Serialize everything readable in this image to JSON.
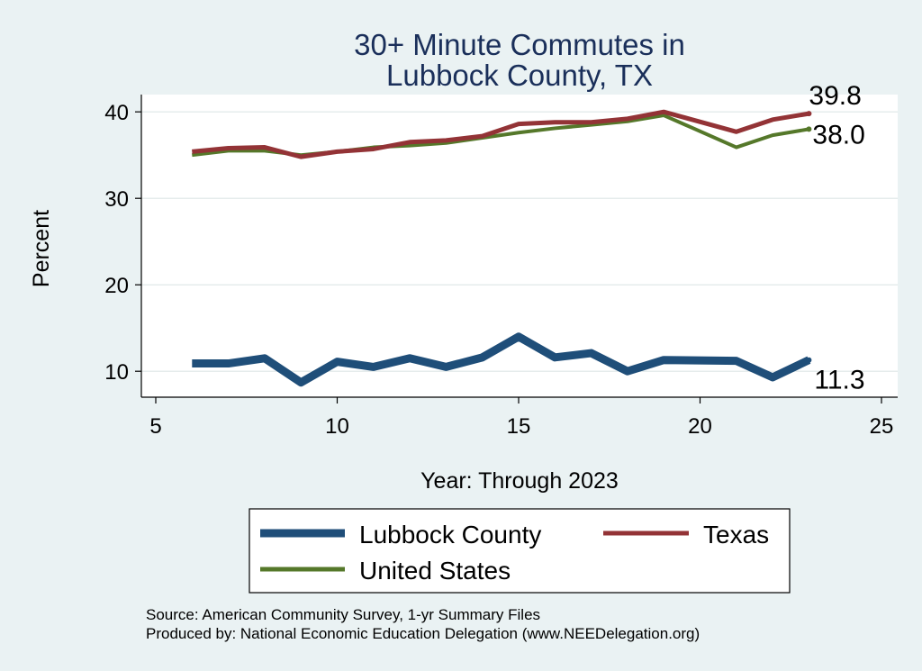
{
  "chart_data": {
    "type": "line",
    "title_lines": [
      "30+ Minute Commutes in",
      "Lubbock County, TX"
    ],
    "xlabel": "Year: Through 2023",
    "ylabel": "Percent",
    "xlim": [
      5,
      25
    ],
    "ylim": [
      7,
      42
    ],
    "xticks": [
      5,
      10,
      15,
      20,
      25
    ],
    "yticks": [
      10,
      20,
      30,
      40
    ],
    "grid": true,
    "legend_position": "bottom",
    "series": [
      {
        "name": "Lubbock County",
        "color": "#1f4e79",
        "x": [
          6,
          7,
          8,
          9,
          10,
          11,
          12,
          13,
          14,
          15,
          16,
          17,
          18,
          19,
          21,
          22,
          23
        ],
        "values": [
          10.9,
          10.9,
          11.5,
          8.7,
          11.1,
          10.5,
          11.5,
          10.5,
          11.6,
          14.0,
          11.6,
          12.1,
          10.0,
          11.3,
          11.2,
          9.3,
          11.3
        ],
        "end_label": "11.3"
      },
      {
        "name": "Texas",
        "color": "#933336",
        "x": [
          6,
          7,
          8,
          9,
          10,
          11,
          12,
          13,
          14,
          15,
          16,
          17,
          18,
          19,
          21,
          22,
          23
        ],
        "values": [
          35.4,
          35.8,
          35.9,
          34.8,
          35.4,
          35.7,
          36.5,
          36.7,
          37.2,
          38.6,
          38.8,
          38.8,
          39.2,
          40.0,
          37.7,
          39.1,
          39.8
        ],
        "end_label": "39.8"
      },
      {
        "name": "United States",
        "color": "#55782a",
        "x": [
          6,
          7,
          8,
          9,
          10,
          11,
          12,
          13,
          14,
          15,
          16,
          17,
          18,
          19,
          21,
          22,
          23
        ],
        "values": [
          35.0,
          35.5,
          35.5,
          35.0,
          35.4,
          35.9,
          36.1,
          36.4,
          37.0,
          37.6,
          38.1,
          38.5,
          38.9,
          39.6,
          35.9,
          37.3,
          38.0
        ],
        "end_label": "38.0"
      }
    ]
  },
  "footer": {
    "source": "Source: American Community Survey, 1-yr Summary Files",
    "producer": "Produced by: National Economic Education Delegation (www.NEEDelegation.org)"
  }
}
